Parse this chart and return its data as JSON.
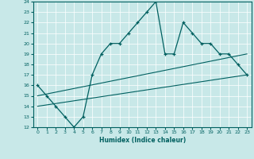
{
  "xlabel": "Humidex (Indice chaleur)",
  "xlim": [
    -0.5,
    23.5
  ],
  "ylim": [
    12,
    24
  ],
  "xticks": [
    0,
    1,
    2,
    3,
    4,
    5,
    6,
    7,
    8,
    9,
    10,
    11,
    12,
    13,
    14,
    15,
    16,
    17,
    18,
    19,
    20,
    21,
    22,
    23
  ],
  "yticks": [
    12,
    13,
    14,
    15,
    16,
    17,
    18,
    19,
    20,
    21,
    22,
    23,
    24
  ],
  "bg_color": "#c8e8e8",
  "line_color": "#006060",
  "series1_x": [
    0,
    1,
    2,
    3,
    4,
    5,
    6,
    7,
    8,
    9,
    10,
    11,
    12,
    13,
    14,
    15,
    16,
    17,
    18,
    19,
    20,
    21,
    22,
    23
  ],
  "series1_y": [
    16,
    15,
    14,
    13,
    12,
    13,
    17,
    19,
    20,
    20,
    21,
    22,
    23,
    24,
    19,
    19,
    22,
    21,
    20,
    20,
    19,
    19,
    18,
    17
  ],
  "series2_x": [
    0,
    23
  ],
  "series2_y": [
    15,
    19
  ],
  "series3_x": [
    0,
    23
  ],
  "series3_y": [
    14,
    17
  ]
}
